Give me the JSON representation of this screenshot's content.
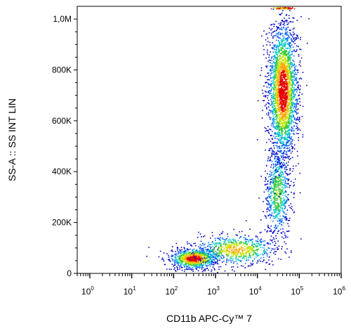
{
  "chart_data": {
    "type": "scatter",
    "subtype": "flow-cytometry-density-dot-plot",
    "title": "",
    "xlabel": "CD11b APC-Cy™ 7",
    "ylabel": "SS-A :: SS INT LIN",
    "x_scale": "log",
    "xlim": [
      0.5,
      1000000
    ],
    "y_scale": "linear",
    "ylim": [
      0,
      1050000
    ],
    "x_ticks": [
      {
        "base": "10",
        "exp": "0",
        "value": 1
      },
      {
        "base": "10",
        "exp": "1",
        "value": 10
      },
      {
        "base": "10",
        "exp": "2",
        "value": 100
      },
      {
        "base": "10",
        "exp": "3",
        "value": 1000
      },
      {
        "base": "10",
        "exp": "4",
        "value": 10000
      },
      {
        "base": "10",
        "exp": "5",
        "value": 100000
      },
      {
        "base": "10",
        "exp": "6",
        "value": 1000000
      }
    ],
    "y_ticks": [
      {
        "label": "0",
        "value": 0
      },
      {
        "label": "200K",
        "value": 200000
      },
      {
        "label": "400K",
        "value": 400000
      },
      {
        "label": "600K",
        "value": 600000
      },
      {
        "label": "800K",
        "value": 800000
      },
      {
        "label": "1,0M",
        "value": 1000000
      }
    ],
    "grid": false,
    "legend": "none",
    "density_colors": [
      "#0000c8",
      "#0064ff",
      "#00c8c8",
      "#32c832",
      "#c8e600",
      "#ffa500",
      "#e60000"
    ],
    "populations": [
      {
        "center_x": 300,
        "center_y": 60000,
        "spread_log_x": 0.28,
        "spread_y": 20000,
        "count": 900,
        "peak_density": "high"
      },
      {
        "center_x": 3000,
        "center_y": 95000,
        "spread_log_x": 0.5,
        "spread_y": 30000,
        "count": 700,
        "peak_density": "medium"
      },
      {
        "center_x": 30000,
        "center_y": 320000,
        "spread_log_x": 0.15,
        "spread_y": 90000,
        "count": 700,
        "peak_density": "low"
      },
      {
        "center_x": 40000,
        "center_y": 720000,
        "spread_log_x": 0.17,
        "spread_y": 130000,
        "count": 2600,
        "peak_density": "high"
      }
    ]
  }
}
